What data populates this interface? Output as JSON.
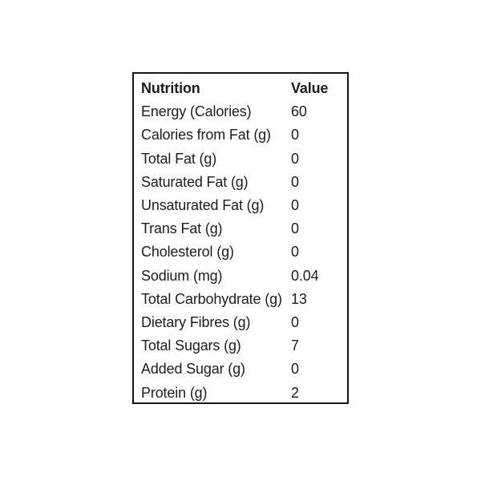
{
  "colors": {
    "page_background": "#ffffff",
    "table_background": "#ffffff",
    "table_border": "#161616",
    "text": "#1d1d1d"
  },
  "chart_data": {
    "type": "table",
    "columns": [
      "Nutrition",
      "Value"
    ],
    "rows": [
      {
        "label": "Energy (Calories)",
        "value": "60"
      },
      {
        "label": "Calories from Fat (g)",
        "value": "0"
      },
      {
        "label": "Total Fat (g)",
        "value": "0"
      },
      {
        "label": "Saturated Fat (g)",
        "value": "0"
      },
      {
        "label": "Unsaturated Fat (g)",
        "value": "0"
      },
      {
        "label": "Trans Fat (g)",
        "value": "0"
      },
      {
        "label": "Cholesterol (g)",
        "value": "0"
      },
      {
        "label": "Sodium (mg)",
        "value": "0.04"
      },
      {
        "label": "Total Carbohydrate (g)",
        "value": "13"
      },
      {
        "label": "Dietary Fibres (g)",
        "value": "0"
      },
      {
        "label": "Total Sugars (g)",
        "value": "7"
      },
      {
        "label": "Added Sugar (g)",
        "value": "0"
      },
      {
        "label": "Protein (g)",
        "value": "2"
      }
    ],
    "layout": {
      "header_bold": true,
      "internal_gridlines": false,
      "outer_border": true
    }
  }
}
